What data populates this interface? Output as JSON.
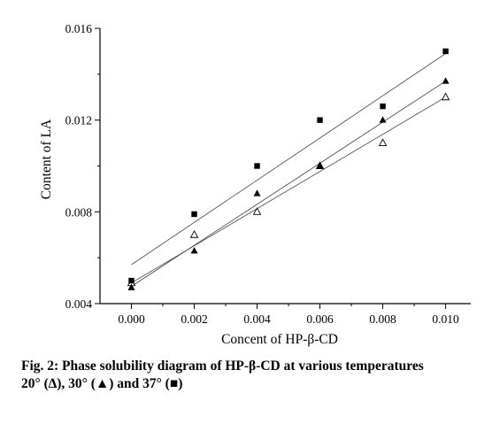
{
  "chart_data": {
    "type": "scatter",
    "xlabel": "Concent of HP-β-CD",
    "ylabel": "Content of LA",
    "xlim": [
      -0.001,
      0.0108
    ],
    "ylim": [
      0.004,
      0.016
    ],
    "x_ticks": [
      "0.000",
      "0.002",
      "0.004",
      "0.006",
      "0.008",
      "0.010"
    ],
    "y_ticks": [
      "0.004",
      "0.008",
      "0.012",
      "0.016"
    ],
    "x": [
      0.0,
      0.002,
      0.004,
      0.006,
      0.008,
      0.01
    ],
    "series": [
      {
        "marker": "open-triangle",
        "values": [
          0.0049,
          0.007,
          0.008,
          0.01,
          0.011,
          0.013
        ],
        "fit": [
          0.0049,
          0.013
        ]
      },
      {
        "marker": "filled-triangle",
        "values": [
          0.0047,
          0.0063,
          0.0088,
          0.01,
          0.012,
          0.0137
        ],
        "fit": [
          0.00475,
          0.0137
        ]
      },
      {
        "marker": "filled-square",
        "values": [
          0.005,
          0.0079,
          0.01,
          0.012,
          0.0126,
          0.015
        ],
        "fit": [
          0.0057,
          0.0149
        ]
      }
    ],
    "grid": false,
    "legend": "none"
  },
  "caption": {
    "title": "Fig. 2: Phase solubility diagram of HP-β-CD at various temperatures",
    "legend": "20° (∆), 30° (▲) and 37° (■)"
  }
}
